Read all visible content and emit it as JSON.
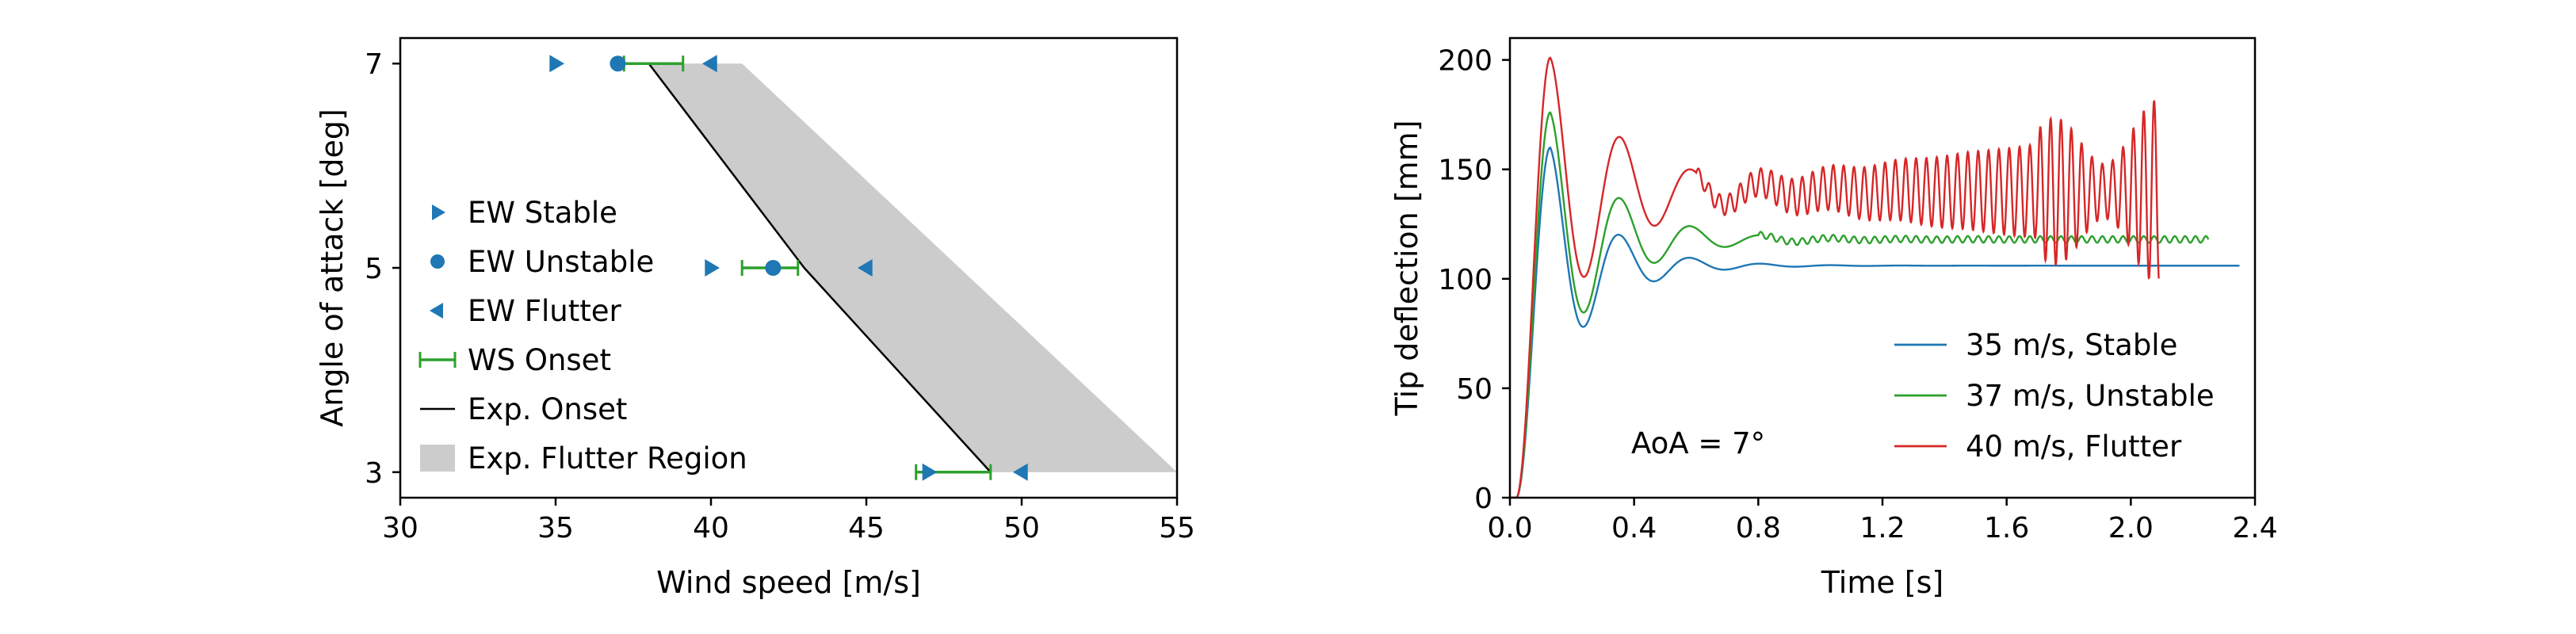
{
  "chart_data": [
    {
      "type": "scatter",
      "xlabel": "Wind speed [m/s]",
      "ylabel": "Angle of attack [deg]",
      "xlim": [
        30,
        55
      ],
      "ylim": [
        2.75,
        7.25
      ],
      "xticks": [
        30,
        35,
        40,
        45,
        50,
        55
      ],
      "yticks": [
        3,
        5,
        7
      ],
      "legend_position": "left",
      "colors": {
        "blue": "#1f77b4",
        "green": "#2ca02c",
        "black": "#000000",
        "gray": "#cccccc"
      },
      "series": [
        {
          "name": "EW Stable",
          "marker": "triangle-right",
          "points": [
            [
              35,
              7
            ],
            [
              40,
              5
            ],
            [
              47,
              3
            ]
          ]
        },
        {
          "name": "EW Unstable",
          "marker": "circle",
          "points": [
            [
              37,
              7
            ],
            [
              42,
              5
            ]
          ]
        },
        {
          "name": "EW Flutter",
          "marker": "triangle-left",
          "points": [
            [
              40,
              7
            ],
            [
              45,
              5
            ],
            [
              50,
              3
            ]
          ]
        },
        {
          "name": "WS Onset",
          "marker": "errorbar",
          "points": [
            {
              "x": 37.2,
              "y": 7,
              "xmin": 37.2,
              "xmax": 39.1
            },
            {
              "x": 42.2,
              "y": 5,
              "xmin": 41.0,
              "xmax": 42.8
            },
            {
              "x": 47.2,
              "y": 3,
              "xmin": 46.6,
              "xmax": 49.0
            }
          ]
        },
        {
          "name": "Exp. Onset",
          "marker": "line",
          "points": [
            [
              38,
              7
            ],
            [
              43,
              5
            ],
            [
              49,
              3
            ]
          ]
        },
        {
          "name": "Exp. Flutter Region",
          "marker": "area",
          "polygon": [
            [
              38,
              7
            ],
            [
              41,
              7
            ],
            [
              55,
              3
            ],
            [
              49,
              3
            ],
            [
              43,
              5
            ]
          ]
        }
      ]
    },
    {
      "type": "line",
      "xlabel": "Time [s]",
      "ylabel": "Tip deflection [mm]",
      "xlim": [
        0,
        2.4
      ],
      "ylim": [
        0,
        210
      ],
      "xticks": [
        "0.0",
        "0.4",
        "0.8",
        "1.2",
        "1.6",
        "2.0",
        "2.4"
      ],
      "yticks": [
        0,
        50,
        100,
        150,
        200
      ],
      "legend_position": "lower-right",
      "annotation": "AoA = 7°",
      "series": [
        {
          "name": "35 m/s, Stable",
          "color": "#1f77b4",
          "t_end": 2.35,
          "steady": 106,
          "peak": 160,
          "first_min": 74,
          "freq_hz": 4.4,
          "decay": 6.0,
          "ripple": 0.0
        },
        {
          "name": "37 m/s, Unstable",
          "color": "#2ca02c",
          "t_end": 2.25,
          "steady": 118,
          "peak": 176,
          "first_min": 86,
          "freq_hz": 4.4,
          "decay": 5.0,
          "ripple": 1.5
        },
        {
          "name": "40 m/s, Flutter",
          "color": "#d62728",
          "t_end": 2.09,
          "steady": 140,
          "peak": 201,
          "first_min": 104,
          "freq_hz": 4.4,
          "decay": 4.0,
          "flutter_freq_hz": 30,
          "flutter_amp_start": 3,
          "flutter_amp_end": 28
        }
      ]
    }
  ]
}
